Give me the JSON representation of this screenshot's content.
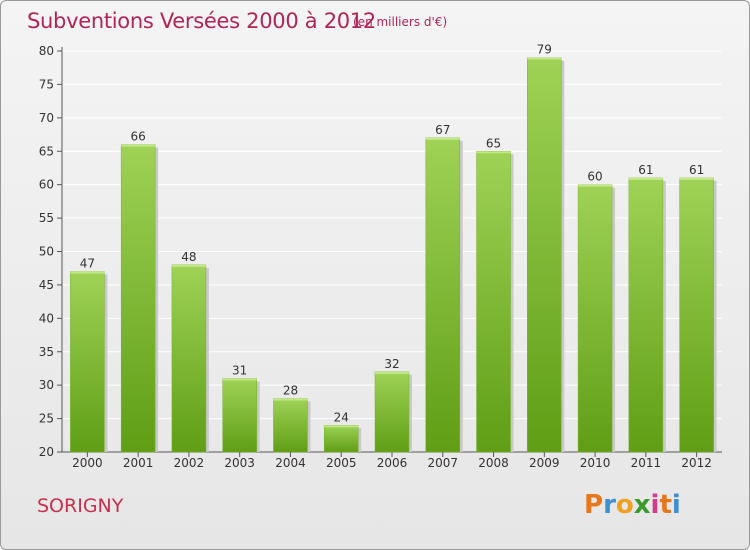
{
  "header": {
    "title": "Subventions Versées 2000 à 2012",
    "unit": "(en milliers d'€)"
  },
  "footer": {
    "commune": "SORIGNY",
    "logo_letters": [
      "P",
      "r",
      "o",
      "x",
      "i",
      "t",
      "i"
    ],
    "logo_colors": [
      "#e8771c",
      "#3e8fd0",
      "#f0a020",
      "#3a9a2a",
      "#d23c8c",
      "#e8771c",
      "#3e8fd0"
    ]
  },
  "colors": {
    "bar_top": "#9fd256",
    "bar_bottom": "#5f9e15",
    "title": "#b0245a",
    "grid": "#ffffff"
  },
  "chart_data": {
    "type": "bar",
    "title": "Subventions Versées 2000 à 2012",
    "subtitle": "(en milliers d'€)",
    "xlabel": "",
    "ylabel": "",
    "categories": [
      "2000",
      "2001",
      "2002",
      "2003",
      "2004",
      "2005",
      "2006",
      "2007",
      "2008",
      "2009",
      "2010",
      "2011",
      "2012"
    ],
    "values": [
      47,
      66,
      48,
      31,
      28,
      24,
      32,
      67,
      65,
      79,
      60,
      61,
      61
    ],
    "ylim": [
      20,
      80
    ],
    "yticks": [
      20,
      25,
      30,
      35,
      40,
      45,
      50,
      55,
      60,
      65,
      70,
      75,
      80
    ],
    "grid": true,
    "data_labels": true
  }
}
